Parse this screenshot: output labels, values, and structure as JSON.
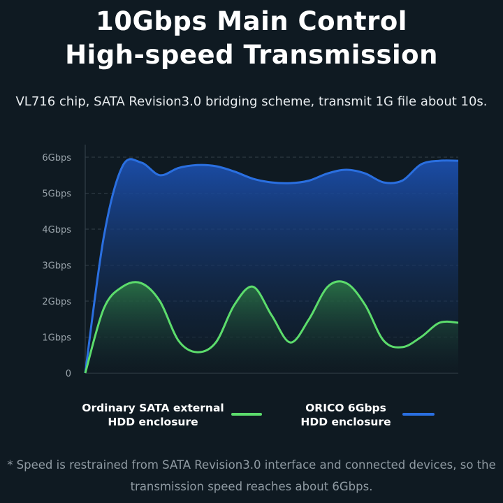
{
  "header": {
    "title_line1": "10Gbps Main Control",
    "title_line2": "High-speed Transmission",
    "subtitle": "VL716 chip, SATA Revision3.0 bridging scheme, transmit 1G file about 10s."
  },
  "chart_data": {
    "type": "area",
    "title": "",
    "xlabel": "",
    "ylabel": "",
    "ylim": [
      0,
      6.3
    ],
    "yticks": [
      0,
      1,
      2,
      3,
      4,
      5,
      6
    ],
    "ytick_labels": [
      "0",
      "1Gbps",
      "2Gbps",
      "3Gbps",
      "4Gbps",
      "5Gbps",
      "6Gbps"
    ],
    "grid": true,
    "x": [
      0,
      0.05,
      0.1,
      0.15,
      0.2,
      0.25,
      0.3,
      0.35,
      0.4,
      0.45,
      0.5,
      0.55,
      0.6,
      0.65,
      0.7,
      0.75,
      0.8,
      0.85,
      0.9,
      0.95,
      1.0
    ],
    "series": [
      {
        "name": "ORICO 6Gbps HDD enclosure",
        "color": "#2a6fe0",
        "values": [
          0.0,
          3.8,
          5.75,
          5.85,
          5.5,
          5.7,
          5.78,
          5.75,
          5.6,
          5.4,
          5.3,
          5.28,
          5.35,
          5.55,
          5.65,
          5.55,
          5.3,
          5.35,
          5.8,
          5.9,
          5.9
        ]
      },
      {
        "name": "Ordinary SATA external HDD enclosure",
        "color": "#5cdc6c",
        "values": [
          0.0,
          1.8,
          2.4,
          2.5,
          2.0,
          0.9,
          0.58,
          0.85,
          1.9,
          2.4,
          1.6,
          0.85,
          1.5,
          2.4,
          2.5,
          1.9,
          0.9,
          0.72,
          1.0,
          1.4,
          1.4
        ]
      }
    ],
    "legend_position": "bottom"
  },
  "legend": {
    "green_label": "Ordinary SATA external HDD enclosure",
    "blue_label": "ORICO 6Gbps HDD enclosure",
    "green_color": "#5cdc6c",
    "blue_color": "#2a6fe0"
  },
  "footnote": "* Speed is restrained from SATA Revision3.0 interface and connected devices, so the transmission speed reaches about 6Gbps."
}
